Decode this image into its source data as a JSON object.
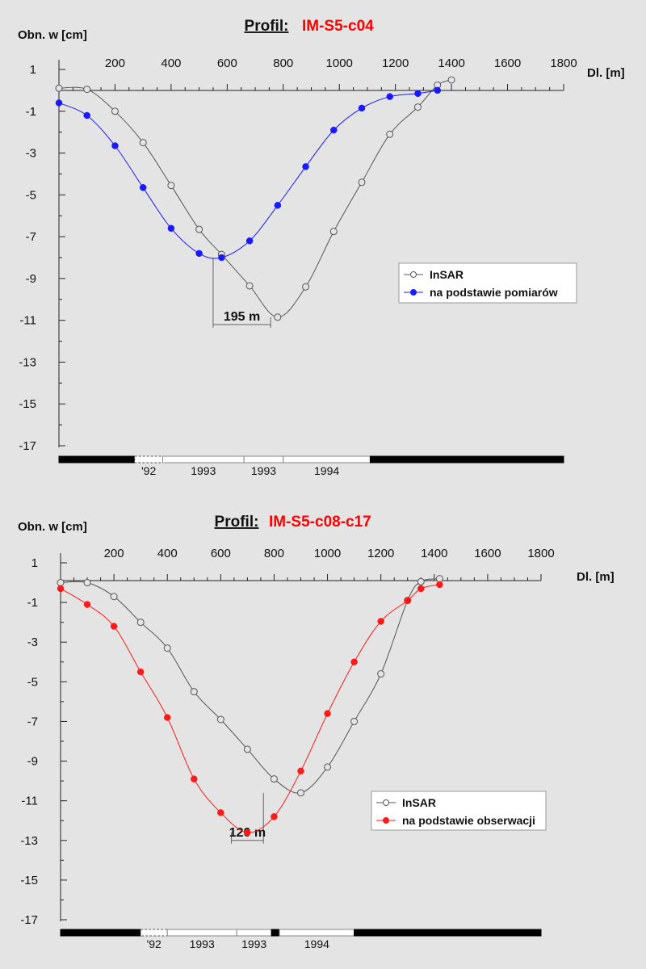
{
  "chart_data": [
    {
      "type": "line",
      "title_prefix": "Profil:",
      "title_id": "IM-S5-c04",
      "ylabel": "Obn. w [cm]",
      "xlabel": "Dl. [m]",
      "xlim": [
        0,
        1800
      ],
      "ylim": [
        -17,
        1
      ],
      "x_ticks": [
        200,
        400,
        600,
        800,
        1000,
        1200,
        1400,
        1600,
        1800
      ],
      "y_ticks": [
        1,
        -1,
        -3,
        -5,
        -7,
        -9,
        -11,
        -13,
        -15,
        -17
      ],
      "grid": false,
      "legend_position": "right",
      "series": [
        {
          "name": "InSAR",
          "marker": "open-circle",
          "color": "#555555",
          "x": [
            0,
            100,
            200,
            300,
            400,
            500,
            580,
            680,
            780,
            880,
            980,
            1080,
            1180,
            1280,
            1350,
            1400
          ],
          "y": [
            0.1,
            0.05,
            -1.0,
            -2.5,
            -4.55,
            -6.65,
            -7.85,
            -9.35,
            -10.85,
            -9.4,
            -6.75,
            -4.4,
            -2.1,
            -0.8,
            0.25,
            0.5
          ]
        },
        {
          "name": "na podstawie pomiarów",
          "marker": "filled-circle",
          "color": "#1a1aff",
          "x": [
            0,
            100,
            200,
            300,
            400,
            500,
            580,
            680,
            780,
            880,
            980,
            1080,
            1180,
            1280,
            1350
          ],
          "y": [
            -0.6,
            -1.2,
            -2.65,
            -4.65,
            -6.6,
            -7.8,
            -8.0,
            -7.2,
            -5.5,
            -3.65,
            -1.9,
            -0.85,
            -0.3,
            -0.15,
            0.0
          ]
        }
      ],
      "annotation": {
        "label": "195 m",
        "x_from": 550,
        "x_to": 755,
        "y": -11.2
      },
      "period_bar": [
        {
          "label": "",
          "x_from": 0,
          "x_to": 270,
          "fill": "black"
        },
        {
          "label": "'92",
          "x_from": 270,
          "x_to": 370,
          "fill": "dashed"
        },
        {
          "label": "1993",
          "x_from": 370,
          "x_to": 660,
          "fill": "white"
        },
        {
          "label": "1993",
          "x_from": 660,
          "x_to": 800,
          "fill": "white"
        },
        {
          "label": "1994",
          "x_from": 800,
          "x_to": 1110,
          "fill": "white"
        },
        {
          "label": "",
          "x_from": 1110,
          "x_to": 1800,
          "fill": "black"
        }
      ]
    },
    {
      "type": "line",
      "title_prefix": "Profil:",
      "title_id": "IM-S5-c08-c17",
      "ylabel": "Obn. w [cm]",
      "xlabel": "Dl. [m]",
      "xlim": [
        0,
        1800
      ],
      "ylim": [
        -17,
        1
      ],
      "x_ticks": [
        200,
        400,
        600,
        800,
        1000,
        1200,
        1400,
        1600,
        1800
      ],
      "y_ticks": [
        1,
        -1,
        -3,
        -5,
        -7,
        -9,
        -11,
        -13,
        -15,
        -17
      ],
      "grid": false,
      "legend_position": "right",
      "series": [
        {
          "name": "InSAR",
          "marker": "open-circle",
          "color": "#555555",
          "x": [
            0,
            100,
            200,
            300,
            400,
            500,
            600,
            700,
            800,
            900,
            1000,
            1100,
            1200,
            1300,
            1350,
            1420
          ],
          "y": [
            0.0,
            0.0,
            -0.7,
            -2.0,
            -3.3,
            -5.5,
            -6.9,
            -8.4,
            -9.9,
            -10.6,
            -9.3,
            -7.0,
            -4.6,
            -0.9,
            0.05,
            0.2
          ]
        },
        {
          "name": "na podstawie obserwacji",
          "marker": "filled-circle",
          "color": "#ff1a1a",
          "x": [
            0,
            100,
            200,
            300,
            400,
            500,
            600,
            700,
            800,
            900,
            1000,
            1100,
            1200,
            1300,
            1350,
            1420
          ],
          "y": [
            -0.3,
            -1.1,
            -2.2,
            -4.5,
            -6.8,
            -9.9,
            -11.6,
            -12.6,
            -11.8,
            -9.5,
            -6.6,
            -4.0,
            -1.95,
            -0.9,
            -0.3,
            -0.1
          ]
        }
      ],
      "annotation": {
        "label": "120 m",
        "x_from": 640,
        "x_to": 760,
        "y": -13.0
      },
      "period_bar": [
        {
          "label": "",
          "x_from": 0,
          "x_to": 300,
          "fill": "black"
        },
        {
          "label": "'92",
          "x_from": 300,
          "x_to": 400,
          "fill": "dashed"
        },
        {
          "label": "1993",
          "x_from": 400,
          "x_to": 660,
          "fill": "white"
        },
        {
          "label": "1993",
          "x_from": 660,
          "x_to": 790,
          "fill": "white"
        },
        {
          "label": "",
          "x_from": 790,
          "x_to": 820,
          "fill": "black"
        },
        {
          "label": "1994",
          "x_from": 820,
          "x_to": 1100,
          "fill": "white"
        },
        {
          "label": "",
          "x_from": 1100,
          "x_to": 1800,
          "fill": "black"
        }
      ]
    }
  ]
}
